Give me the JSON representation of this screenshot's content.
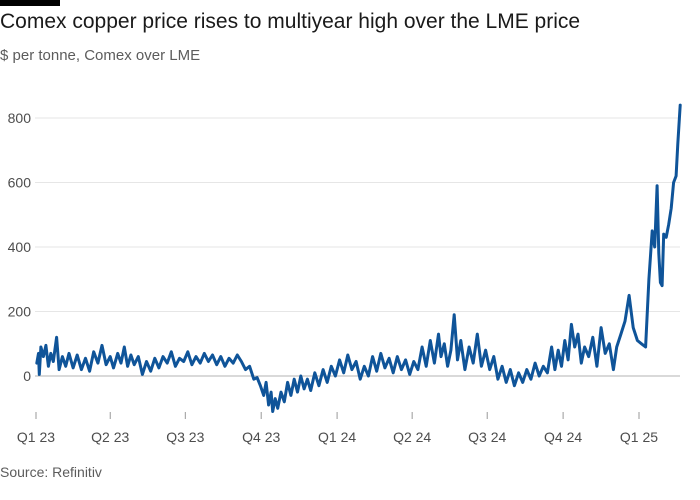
{
  "header": {
    "title": "Comex copper price rises to multiyear high over the LME price",
    "subtitle": "$ per tonne, Comex over LME"
  },
  "footer": {
    "source": "Source: Refinitiv"
  },
  "colors": {
    "line": "#0f5499",
    "grid": "#e6e6e6",
    "zero_line": "#b3b3b3",
    "text": "#4d4d4d"
  },
  "chart_data": {
    "type": "line",
    "title": "Comex copper price rises to multiyear high over the LME price",
    "subtitle": "$ per tonne, Comex over LME",
    "ylabel": "",
    "xlabel": "",
    "ylim": [
      -120,
      850
    ],
    "yticks": [
      0,
      200,
      400,
      600,
      800
    ],
    "xlim": [
      "2023-01-01",
      "2025-03-20"
    ],
    "xticks": [
      {
        "label": "Q1 23",
        "date": "2023-01-01"
      },
      {
        "label": "Q2 23",
        "date": "2023-04-01"
      },
      {
        "label": "Q3 23",
        "date": "2023-07-01"
      },
      {
        "label": "Q4 23",
        "date": "2023-10-01"
      },
      {
        "label": "Q1 24",
        "date": "2024-01-01"
      },
      {
        "label": "Q2 24",
        "date": "2024-04-01"
      },
      {
        "label": "Q3 24",
        "date": "2024-07-01"
      },
      {
        "label": "Q4 24",
        "date": "2024-10-01"
      },
      {
        "label": "Q1 25",
        "date": "2025-01-01"
      }
    ],
    "grid": true,
    "series": [
      {
        "name": "",
        "points": [
          [
            "2023-01-02",
            40
          ],
          [
            "2023-01-04",
            70
          ],
          [
            "2023-01-05",
            5
          ],
          [
            "2023-01-07",
            90
          ],
          [
            "2023-01-10",
            60
          ],
          [
            "2023-01-13",
            95
          ],
          [
            "2023-01-16",
            30
          ],
          [
            "2023-01-19",
            70
          ],
          [
            "2023-01-22",
            45
          ],
          [
            "2023-01-26",
            120
          ],
          [
            "2023-01-29",
            20
          ],
          [
            "2023-02-02",
            60
          ],
          [
            "2023-02-06",
            30
          ],
          [
            "2023-02-10",
            70
          ],
          [
            "2023-02-15",
            25
          ],
          [
            "2023-02-20",
            65
          ],
          [
            "2023-02-25",
            20
          ],
          [
            "2023-03-02",
            55
          ],
          [
            "2023-03-07",
            15
          ],
          [
            "2023-03-12",
            75
          ],
          [
            "2023-03-17",
            40
          ],
          [
            "2023-03-22",
            95
          ],
          [
            "2023-03-27",
            35
          ],
          [
            "2023-04-01",
            60
          ],
          [
            "2023-04-05",
            25
          ],
          [
            "2023-04-10",
            70
          ],
          [
            "2023-04-14",
            40
          ],
          [
            "2023-04-18",
            90
          ],
          [
            "2023-04-22",
            30
          ],
          [
            "2023-04-26",
            65
          ],
          [
            "2023-04-30",
            35
          ],
          [
            "2023-05-05",
            60
          ],
          [
            "2023-05-10",
            5
          ],
          [
            "2023-05-15",
            45
          ],
          [
            "2023-05-20",
            15
          ],
          [
            "2023-05-25",
            55
          ],
          [
            "2023-05-30",
            25
          ],
          [
            "2023-06-04",
            60
          ],
          [
            "2023-06-09",
            40
          ],
          [
            "2023-06-14",
            75
          ],
          [
            "2023-06-19",
            30
          ],
          [
            "2023-06-24",
            55
          ],
          [
            "2023-06-29",
            45
          ],
          [
            "2023-07-04",
            75
          ],
          [
            "2023-07-09",
            35
          ],
          [
            "2023-07-14",
            60
          ],
          [
            "2023-07-19",
            40
          ],
          [
            "2023-07-24",
            70
          ],
          [
            "2023-07-29",
            45
          ],
          [
            "2023-08-03",
            65
          ],
          [
            "2023-08-08",
            35
          ],
          [
            "2023-08-13",
            60
          ],
          [
            "2023-08-18",
            30
          ],
          [
            "2023-08-23",
            55
          ],
          [
            "2023-08-28",
            40
          ],
          [
            "2023-09-02",
            65
          ],
          [
            "2023-09-07",
            45
          ],
          [
            "2023-09-12",
            20
          ],
          [
            "2023-09-17",
            30
          ],
          [
            "2023-09-22",
            -10
          ],
          [
            "2023-09-26",
            -5
          ],
          [
            "2023-09-30",
            -30
          ],
          [
            "2023-10-04",
            -60
          ],
          [
            "2023-10-07",
            -20
          ],
          [
            "2023-10-10",
            -90
          ],
          [
            "2023-10-13",
            -50
          ],
          [
            "2023-10-15",
            -110
          ],
          [
            "2023-10-18",
            -70
          ],
          [
            "2023-10-21",
            -100
          ],
          [
            "2023-10-25",
            -50
          ],
          [
            "2023-10-29",
            -80
          ],
          [
            "2023-11-02",
            -20
          ],
          [
            "2023-11-06",
            -60
          ],
          [
            "2023-11-10",
            -10
          ],
          [
            "2023-11-14",
            -50
          ],
          [
            "2023-11-18",
            0
          ],
          [
            "2023-11-22",
            -40
          ],
          [
            "2023-11-26",
            -10
          ],
          [
            "2023-11-30",
            -45
          ],
          [
            "2023-12-05",
            10
          ],
          [
            "2023-12-10",
            -30
          ],
          [
            "2023-12-15",
            20
          ],
          [
            "2023-12-20",
            -20
          ],
          [
            "2023-12-25",
            30
          ],
          [
            "2023-12-30",
            0
          ],
          [
            "2024-01-04",
            50
          ],
          [
            "2024-01-09",
            10
          ],
          [
            "2024-01-14",
            65
          ],
          [
            "2024-01-19",
            20
          ],
          [
            "2024-01-24",
            45
          ],
          [
            "2024-01-29",
            -10
          ],
          [
            "2024-02-03",
            30
          ],
          [
            "2024-02-08",
            0
          ],
          [
            "2024-02-13",
            60
          ],
          [
            "2024-02-18",
            15
          ],
          [
            "2024-02-23",
            70
          ],
          [
            "2024-02-28",
            25
          ],
          [
            "2024-03-04",
            55
          ],
          [
            "2024-03-09",
            10
          ],
          [
            "2024-03-14",
            60
          ],
          [
            "2024-03-19",
            20
          ],
          [
            "2024-03-24",
            50
          ],
          [
            "2024-03-29",
            5
          ],
          [
            "2024-04-03",
            45
          ],
          [
            "2024-04-08",
            20
          ],
          [
            "2024-04-13",
            90
          ],
          [
            "2024-04-18",
            30
          ],
          [
            "2024-04-23",
            110
          ],
          [
            "2024-04-28",
            40
          ],
          [
            "2024-05-03",
            130
          ],
          [
            "2024-05-06",
            60
          ],
          [
            "2024-05-10",
            100
          ],
          [
            "2024-05-14",
            30
          ],
          [
            "2024-05-18",
            80
          ],
          [
            "2024-05-22",
            190
          ],
          [
            "2024-05-26",
            50
          ],
          [
            "2024-05-30",
            110
          ],
          [
            "2024-06-04",
            20
          ],
          [
            "2024-06-09",
            90
          ],
          [
            "2024-06-14",
            40
          ],
          [
            "2024-06-19",
            130
          ],
          [
            "2024-06-24",
            30
          ],
          [
            "2024-06-29",
            80
          ],
          [
            "2024-07-04",
            20
          ],
          [
            "2024-07-09",
            60
          ],
          [
            "2024-07-14",
            -10
          ],
          [
            "2024-07-19",
            30
          ],
          [
            "2024-07-24",
            -20
          ],
          [
            "2024-07-29",
            20
          ],
          [
            "2024-08-03",
            -30
          ],
          [
            "2024-08-08",
            10
          ],
          [
            "2024-08-13",
            -20
          ],
          [
            "2024-08-18",
            20
          ],
          [
            "2024-08-23",
            -10
          ],
          [
            "2024-08-28",
            40
          ],
          [
            "2024-09-02",
            0
          ],
          [
            "2024-09-07",
            30
          ],
          [
            "2024-09-12",
            10
          ],
          [
            "2024-09-17",
            90
          ],
          [
            "2024-09-21",
            20
          ],
          [
            "2024-09-25",
            80
          ],
          [
            "2024-09-29",
            30
          ],
          [
            "2024-10-03",
            110
          ],
          [
            "2024-10-07",
            50
          ],
          [
            "2024-10-11",
            160
          ],
          [
            "2024-10-15",
            90
          ],
          [
            "2024-10-19",
            130
          ],
          [
            "2024-10-23",
            40
          ],
          [
            "2024-10-27",
            90
          ],
          [
            "2024-11-01",
            60
          ],
          [
            "2024-11-06",
            120
          ],
          [
            "2024-11-11",
            30
          ],
          [
            "2024-11-16",
            150
          ],
          [
            "2024-11-21",
            70
          ],
          [
            "2024-11-26",
            100
          ],
          [
            "2024-12-01",
            20
          ],
          [
            "2024-12-05",
            90
          ],
          [
            "2024-12-10",
            130
          ],
          [
            "2024-12-15",
            170
          ],
          [
            "2024-12-20",
            250
          ],
          [
            "2024-12-25",
            150
          ],
          [
            "2024-12-30",
            110
          ],
          [
            "2025-01-04",
            100
          ],
          [
            "2025-01-09",
            90
          ],
          [
            "2025-01-13",
            300
          ],
          [
            "2025-01-17",
            450
          ],
          [
            "2025-01-20",
            400
          ],
          [
            "2025-01-23",
            590
          ],
          [
            "2025-01-25",
            380
          ],
          [
            "2025-01-27",
            290
          ],
          [
            "2025-01-29",
            280
          ],
          [
            "2025-01-31",
            440
          ],
          [
            "2025-02-03",
            430
          ],
          [
            "2025-02-06",
            470
          ],
          [
            "2025-02-09",
            520
          ],
          [
            "2025-02-12",
            600
          ],
          [
            "2025-02-15",
            620
          ],
          [
            "2025-02-17",
            720
          ],
          [
            "2025-02-20",
            840
          ]
        ]
      }
    ]
  }
}
